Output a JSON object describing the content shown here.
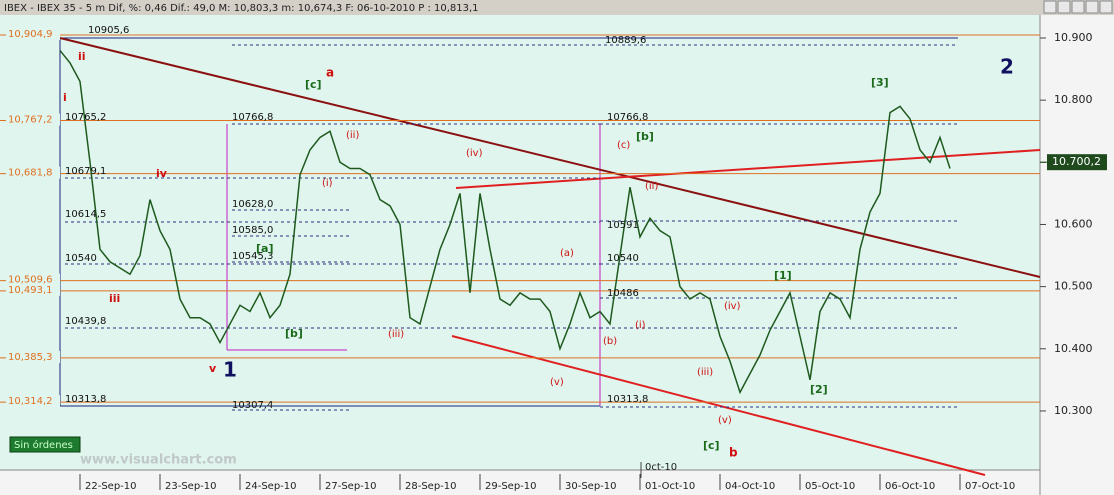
{
  "header": "IBEX - IBEX 35 - 5 m Dif, %: 0,46 Dif.: 49,0 M: 10,803,3 m: 10,674,3 F: 06-10-2010 P : 10,813,1",
  "button": "Sin órdenes",
  "watermark": "www.visualchart.com",
  "chart_data": {
    "type": "line",
    "categories": [
      null,
      null,
      "22-Sep-10",
      null,
      null,
      null,
      null,
      null,
      null,
      null,
      "23-Sep-10",
      null,
      null,
      null,
      null,
      null,
      null,
      null,
      "24-Sep-10",
      null,
      null,
      null,
      null,
      null,
      null,
      null,
      "27-Sep-10",
      null,
      null,
      null,
      null,
      null,
      null,
      null,
      "28-Sep-10",
      null,
      null,
      null,
      null,
      null,
      null,
      null,
      "29-Sep-10",
      null,
      null,
      null,
      null,
      null,
      null,
      null,
      "30-Sep-10",
      null,
      null,
      null,
      null,
      null,
      null,
      null,
      "01-Oct-10",
      null,
      null,
      null,
      null,
      null,
      null,
      null,
      "04-Oct-10",
      null,
      null,
      null,
      null,
      null,
      null,
      null,
      "05-Oct-10",
      null,
      null,
      null,
      null,
      null,
      null,
      null,
      "06-Oct-10",
      null,
      null,
      null,
      null,
      null,
      null,
      null,
      "07-Oct-10"
    ],
    "series": [
      {
        "name": "IBEX 35",
        "color": "#1e5a1e",
        "values": [
          10880,
          10860,
          10830,
          10700,
          10560,
          10540,
          10530,
          10520,
          10550,
          10640,
          10590,
          10560,
          10480,
          10450,
          10450,
          10440,
          10410,
          10440,
          10470,
          10460,
          10490,
          10450,
          10470,
          10520,
          10680,
          10720,
          10740,
          10750,
          10700,
          10690,
          10690,
          10680,
          10640,
          10630,
          10600,
          10450,
          10440,
          10500,
          10560,
          10600,
          10650,
          10490,
          10650,
          10560,
          10480,
          10470,
          10490,
          10480,
          10480,
          10460,
          10400,
          10440,
          10490,
          10450,
          10460,
          10440,
          10550,
          10660,
          10580,
          10610,
          10590,
          10580,
          10500,
          10480,
          10490,
          10480,
          10420,
          10380,
          10330,
          10360,
          10390,
          10430,
          10460,
          10490,
          10420,
          10350,
          10460,
          10490,
          10480,
          10450,
          10560,
          10620,
          10650,
          10780,
          10790,
          10770,
          10720,
          10700,
          10740,
          10690,
          null
        ]
      }
    ],
    "ylim": [
      10205,
      10937
    ],
    "yticks": [
      {
        "value": 10900,
        "label": "10.900"
      },
      {
        "value": 10800,
        "label": "10.800"
      },
      {
        "value": 10700,
        "label": "10.700"
      },
      {
        "value": 10600,
        "label": "10.600"
      },
      {
        "value": 10500,
        "label": "10.500"
      },
      {
        "value": 10400,
        "label": "10.400"
      },
      {
        "value": 10300,
        "label": "10.300"
      }
    ],
    "levels": {
      "values": [
        10904.9,
        10767.2,
        10681.8,
        10509.6,
        10493.1,
        10385.3,
        10314.2
      ],
      "value_labels": [
        "10,904,9",
        "10,767,2",
        "10,681,8",
        "10,509,6",
        "10,493,1",
        "10,385,3",
        "10,314,2"
      ],
      "color": "#e07020"
    },
    "last_price": {
      "value": 10700.2,
      "label": "10.700,2"
    },
    "axis_note": "0ct-10",
    "annotations": [
      "10905,6",
      "10765,2",
      "10679,1",
      "10614,5",
      "10540",
      "10439,8",
      "10313,8",
      "10889,6",
      "10766,8",
      "10628,0",
      "10585,0",
      "10545,3",
      "10307,4",
      "10766,8",
      "10591",
      "10540",
      "10486",
      "10313,8",
      "a",
      "[c]",
      "ii",
      "i",
      "iv",
      "iii",
      "v",
      "1",
      "[a]",
      "[b]",
      "(ii)",
      "(i)",
      "(iv)",
      "(iii)",
      "(c)",
      "[b]",
      "(ii)",
      "(a)",
      "(i)",
      "(b)",
      "(v)",
      "(iv)",
      "(iii)",
      "(v)",
      "[c]",
      "b",
      "[1]",
      "[2]",
      "[3]",
      "2"
    ]
  }
}
